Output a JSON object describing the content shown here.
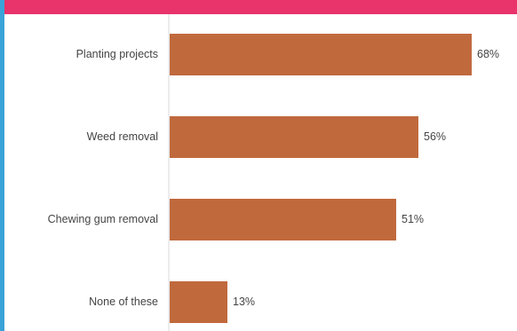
{
  "chart_data": {
    "type": "bar",
    "orientation": "horizontal",
    "categories": [
      "Planting projects",
      "Weed removal",
      "Chewing gum removal",
      "None of these"
    ],
    "values": [
      68,
      56,
      51,
      13
    ],
    "value_format": "{v}%",
    "xlim": [
      0,
      100
    ],
    "grid": false,
    "legend": "none"
  },
  "colors": {
    "bar": "#c0693d",
    "top_accent": "#e8336b",
    "left_accent": "#3aa3d8",
    "axis": "#d9d9d9",
    "text": "#444444"
  }
}
